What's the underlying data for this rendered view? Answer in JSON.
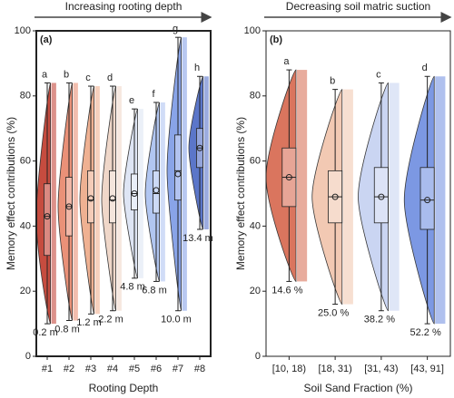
{
  "chart_data": [
    {
      "type": "raincloud",
      "arrow_label": "Increasing rooting depth",
      "panel_label": "(a)",
      "y_label": "Memory effect contributions (%)",
      "x_label": "Rooting Depth",
      "categories": [
        "#1",
        "#2",
        "#3",
        "#4",
        "#5",
        "#6",
        "#7",
        "#8"
      ],
      "colors": [
        "#c0392b",
        "#e8866a",
        "#eea987",
        "#eed3c4",
        "#dbe3f3",
        "#a9c0f0",
        "#7d9be6",
        "#4a68c4"
      ],
      "max": [
        84,
        84,
        83,
        83,
        76,
        78,
        98,
        86
      ],
      "q3": [
        53,
        55,
        57,
        57,
        56,
        57,
        68,
        70
      ],
      "median": [
        43,
        46,
        48,
        48,
        50,
        50,
        57,
        64
      ],
      "q1": [
        31,
        37,
        41,
        41,
        45,
        44,
        48,
        58
      ],
      "min": [
        10,
        11,
        13,
        14,
        24,
        23,
        14,
        39
      ],
      "mean": [
        43,
        46,
        48.5,
        48.5,
        50,
        51,
        56,
        64
      ],
      "top_labels": [
        "a",
        "b",
        "c",
        "d",
        "e",
        "f",
        "g",
        "h"
      ],
      "bottom_labels": [
        "0.2 m",
        "0.8 m",
        "1.2 m",
        "2.2 m",
        "4.8 m",
        "6.8 m",
        "10.0 m",
        "13.4 m"
      ],
      "ylim": [
        0,
        100
      ],
      "yticks": [
        0,
        20,
        40,
        60,
        80,
        100
      ]
    },
    {
      "type": "raincloud",
      "arrow_label": "Decreasing soil matric suction",
      "panel_label": "(b)",
      "y_label": "Memory effect contributions (%)",
      "x_label": "Soil Sand Fraction (%)",
      "categories": [
        "[10, 18)",
        "[18, 31)",
        "[31, 43)",
        "[43, 91]"
      ],
      "colors": [
        "#d6674d",
        "#f1c4ab",
        "#c5d1f1",
        "#6e8de0"
      ],
      "max": [
        88,
        82,
        84,
        86
      ],
      "q3": [
        64,
        57,
        58,
        58
      ],
      "median": [
        55,
        49,
        49,
        48
      ],
      "q1": [
        46,
        41,
        41,
        39
      ],
      "min": [
        23,
        16,
        14,
        10
      ],
      "mean": [
        55,
        49,
        49,
        48
      ],
      "top_labels": [
        "a",
        "b",
        "c",
        "d"
      ],
      "bottom_labels": [
        "14.6 %",
        "25.0 %",
        "38.2 %",
        "52.2 %"
      ],
      "ylim": [
        0,
        100
      ],
      "yticks": [
        0,
        20,
        40,
        60,
        80,
        100
      ]
    }
  ]
}
